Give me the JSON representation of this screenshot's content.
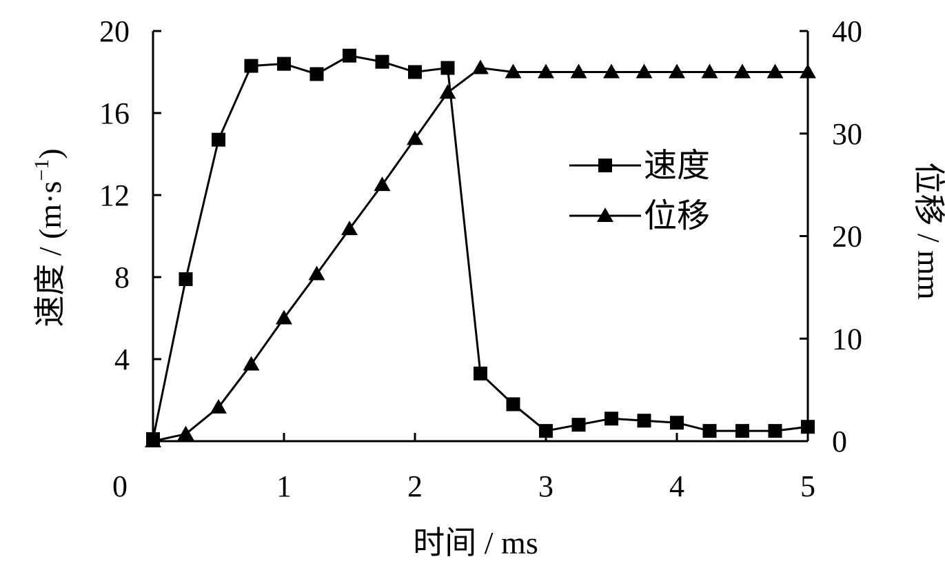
{
  "chart_data": {
    "type": "line",
    "title": "",
    "xlabel": "时间 / ms",
    "ylabel_left": "速度 / (m·s",
    "ylabel_left_sup": "−1",
    "ylabel_left_close": ")",
    "ylabel_right": "位移 / mm",
    "xlim": [
      0,
      5
    ],
    "ylim_left": [
      0,
      20
    ],
    "ylim_right": [
      0,
      40
    ],
    "x_ticks": [
      0,
      1,
      2,
      3,
      4,
      5
    ],
    "y_left_ticks": [
      4,
      8,
      12,
      16,
      20
    ],
    "y_right_ticks": [
      0,
      10,
      20,
      30,
      40
    ],
    "grid": false,
    "legend_position": "right-middle",
    "series": [
      {
        "name": "速度",
        "marker": "square",
        "axis": "left",
        "x": [
          0,
          0.25,
          0.5,
          0.75,
          1.0,
          1.25,
          1.5,
          1.75,
          2.0,
          2.25,
          2.5,
          2.75,
          3.0,
          3.25,
          3.5,
          3.75,
          4.0,
          4.25,
          4.5,
          4.75,
          5.0
        ],
        "y": [
          0.1,
          7.9,
          14.7,
          18.3,
          18.4,
          17.9,
          18.8,
          18.5,
          18.0,
          18.2,
          3.3,
          1.8,
          0.5,
          0.8,
          1.1,
          1.0,
          0.9,
          0.5,
          0.5,
          0.5,
          0.7
        ]
      },
      {
        "name": "位移",
        "marker": "triangle",
        "axis": "right",
        "x": [
          0,
          0.25,
          0.5,
          0.75,
          1.0,
          1.25,
          1.5,
          1.75,
          2.0,
          2.25,
          2.5,
          2.75,
          3.0,
          3.25,
          3.5,
          3.75,
          4.0,
          4.25,
          4.5,
          4.75,
          5.0
        ],
        "y": [
          0,
          0.7,
          3.3,
          7.5,
          12.0,
          16.3,
          20.7,
          25.0,
          29.5,
          34.0,
          36.4,
          36.0,
          36.0,
          36.0,
          36.0,
          36.0,
          36.0,
          36.0,
          36.0,
          36.0,
          36.0
        ]
      }
    ]
  }
}
